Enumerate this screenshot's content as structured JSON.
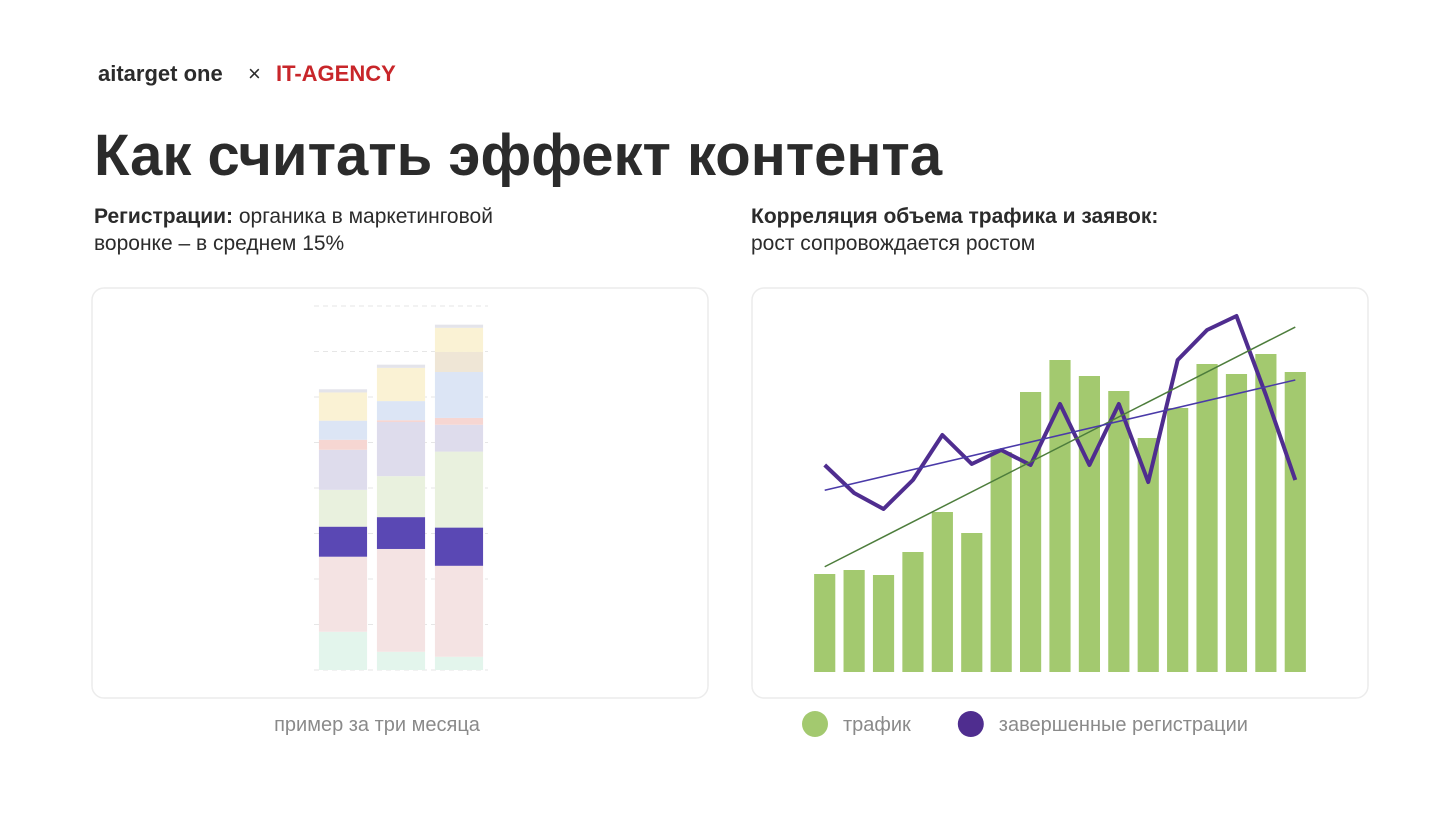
{
  "logo": {
    "brand": "aitarget one",
    "separator": "×",
    "partner": "IT-AGENCY"
  },
  "title": "Как считать эффект контента",
  "left": {
    "bold": "Регистрации:",
    "lines": [
      "органика в маркетинговой",
      "воронке – в среднем 15%"
    ]
  },
  "right": {
    "bold": "Корреляция объема трафика и заявок:",
    "lines": [
      "рост сопровождается ростом"
    ]
  },
  "chart_data": [
    {
      "type": "stacked_bar",
      "categories": [
        null,
        null,
        null
      ],
      "series": [
        {
          "color": "#e3f5ec",
          "values": [
            0.84,
            0.4,
            0.29
          ]
        },
        {
          "color": "#f4e3e3",
          "values": [
            1.65,
            2.26,
            2.0
          ]
        },
        {
          "color": "#5a48b4",
          "values": [
            0.66,
            0.7,
            0.84
          ]
        },
        {
          "color": "#e9f1de",
          "values": [
            0.81,
            0.9,
            1.67
          ]
        },
        {
          "color": "#dedcec",
          "values": [
            0.88,
            1.19,
            0.59
          ]
        },
        {
          "color": "#f6d6d2",
          "values": [
            0.22,
            0.04,
            0.15
          ]
        },
        {
          "color": "#dce5f5",
          "values": [
            0.42,
            0.42,
            1.01
          ]
        },
        {
          "color": "#efe6d6",
          "values": [
            0,
            0,
            0.44
          ]
        },
        {
          "color": "#faf2d4",
          "values": [
            0.62,
            0.73,
            0.53
          ]
        },
        {
          "color": "#e4e4ea",
          "values": [
            0.07,
            0.07,
            0.07
          ]
        }
      ],
      "ylim": [
        0,
        8
      ],
      "yticks": [
        0,
        1,
        2,
        3,
        4,
        5,
        6,
        7,
        8
      ],
      "grid": true,
      "caption": "пример за три месяца"
    },
    {
      "type": "bar_line",
      "categories": [
        null,
        null,
        null,
        null,
        null,
        null,
        null,
        null,
        null,
        null,
        null,
        null,
        null,
        null,
        null,
        null,
        null
      ],
      "series": [
        {
          "name": "трафик",
          "type": "bar",
          "color": "#a3c96f",
          "trend_color": "#4d7d3c",
          "values": [
            98,
            102,
            97,
            120,
            160,
            139,
            220,
            280,
            312,
            296,
            281,
            234,
            264,
            308,
            298,
            318,
            300
          ]
        },
        {
          "name": "завершенные регистрации",
          "type": "line",
          "color": "#4f2d8f",
          "trend_color": "#4a3aa8",
          "values": [
            207,
            179,
            163,
            192,
            237,
            208,
            222,
            207,
            268,
            207,
            268,
            190,
            312,
            342,
            356,
            277,
            192
          ]
        }
      ],
      "ylim": [
        0,
        380
      ],
      "trendline": true
    }
  ]
}
